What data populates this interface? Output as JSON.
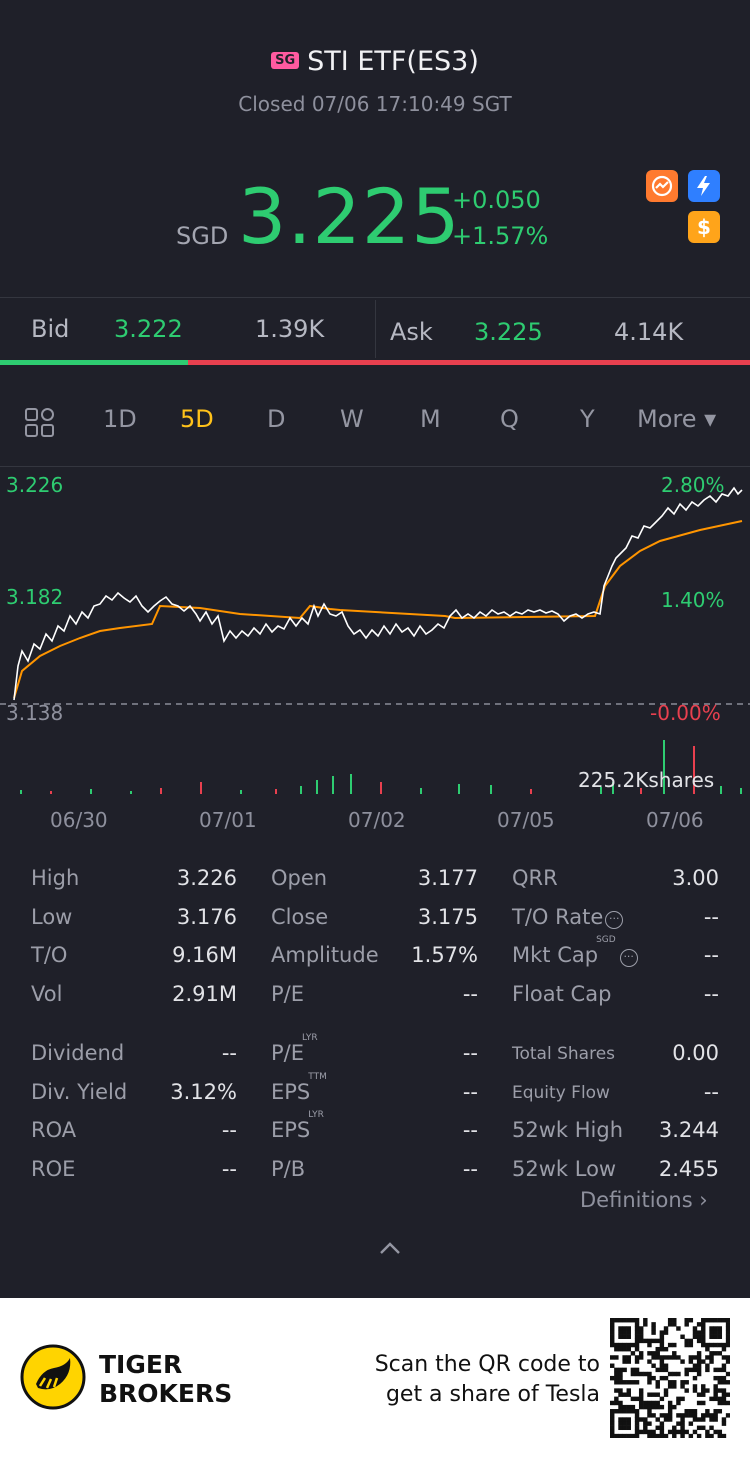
{
  "header": {
    "market_badge": "SG",
    "title": "STI ETF(ES3)",
    "status": "Closed 07/06 17:10:49 SGT"
  },
  "quote": {
    "currency": "SGD",
    "price": "3.225",
    "change": "+0.050",
    "change_pct": "+1.57%",
    "icons": [
      "chart-signal-icon",
      "lightning-icon",
      "dollar-icon"
    ]
  },
  "book": {
    "bid_label": "Bid",
    "bid_price": "3.222",
    "bid_size": "1.39K",
    "ask_label": "Ask",
    "ask_price": "3.225",
    "ask_size": "4.14K",
    "bid_share": 0.25
  },
  "tabs": {
    "items": [
      "1D",
      "5D",
      "D",
      "W",
      "M",
      "Q",
      "Y"
    ],
    "active": "5D",
    "more": "More ▾"
  },
  "chart": {
    "y_left": [
      "3.226",
      "3.182",
      "3.138"
    ],
    "y_right": [
      "2.80%",
      "1.40%",
      "-0.00%"
    ],
    "volume_label": "225.2Kshares",
    "x_labels": [
      "06/30",
      "07/01",
      "07/02",
      "07/05",
      "07/06"
    ]
  },
  "chart_data": {
    "type": "line",
    "x": [
      "06/30",
      "07/01",
      "07/02",
      "07/05",
      "07/06"
    ],
    "ylim": [
      3.138,
      3.226
    ],
    "series": [],
    "colors": {
      "price": "#ffffff",
      "average": "#ff9500",
      "up": "#2ecc71",
      "down": "#e8404f"
    }
  },
  "stats": {
    "col1": [
      {
        "label": "High",
        "value": "3.226"
      },
      {
        "label": "Low",
        "value": "3.176"
      },
      {
        "label": "T/O",
        "value": "9.16M"
      },
      {
        "label": "Vol",
        "value": "2.91M"
      }
    ],
    "col2": [
      {
        "label": "Open",
        "value": "3.177"
      },
      {
        "label": "Close",
        "value": "3.175"
      },
      {
        "label": "Amplitude",
        "value": "1.57%"
      },
      {
        "label": "P/E",
        "value": "--"
      }
    ],
    "col3": [
      {
        "label": "QRR",
        "value": "3.00"
      },
      {
        "label": "T/O Rate",
        "value": "--"
      },
      {
        "label": "Mkt Cap",
        "value": "--",
        "sup": "SGD"
      },
      {
        "label": "Float Cap",
        "value": "--"
      }
    ],
    "col1b": [
      {
        "label": "Dividend",
        "value": "--"
      },
      {
        "label": "Div. Yield",
        "value": "3.12%"
      },
      {
        "label": "ROA",
        "value": "--"
      },
      {
        "label": "ROE",
        "value": "--"
      }
    ],
    "col2b": [
      {
        "label": "P/E",
        "sup": "LYR",
        "value": "--"
      },
      {
        "label": "EPS",
        "sup": "TTM",
        "value": "--"
      },
      {
        "label": "EPS",
        "sup": "LYR",
        "value": "--"
      },
      {
        "label": "P/B",
        "value": "--"
      }
    ],
    "col3b": [
      {
        "label": "Total Shares",
        "value": "0.00"
      },
      {
        "label": "Equity Flow",
        "value": "--"
      },
      {
        "label": "52wk High",
        "value": "3.244"
      },
      {
        "label": "52wk Low",
        "value": "2.455"
      }
    ],
    "definitions": "Definitions ›"
  },
  "footer": {
    "brand_line1": "TIGER",
    "brand_line2": "BROKERS",
    "promo_line1": "Scan the QR code to",
    "promo_line2": "get a share of Tesla"
  }
}
